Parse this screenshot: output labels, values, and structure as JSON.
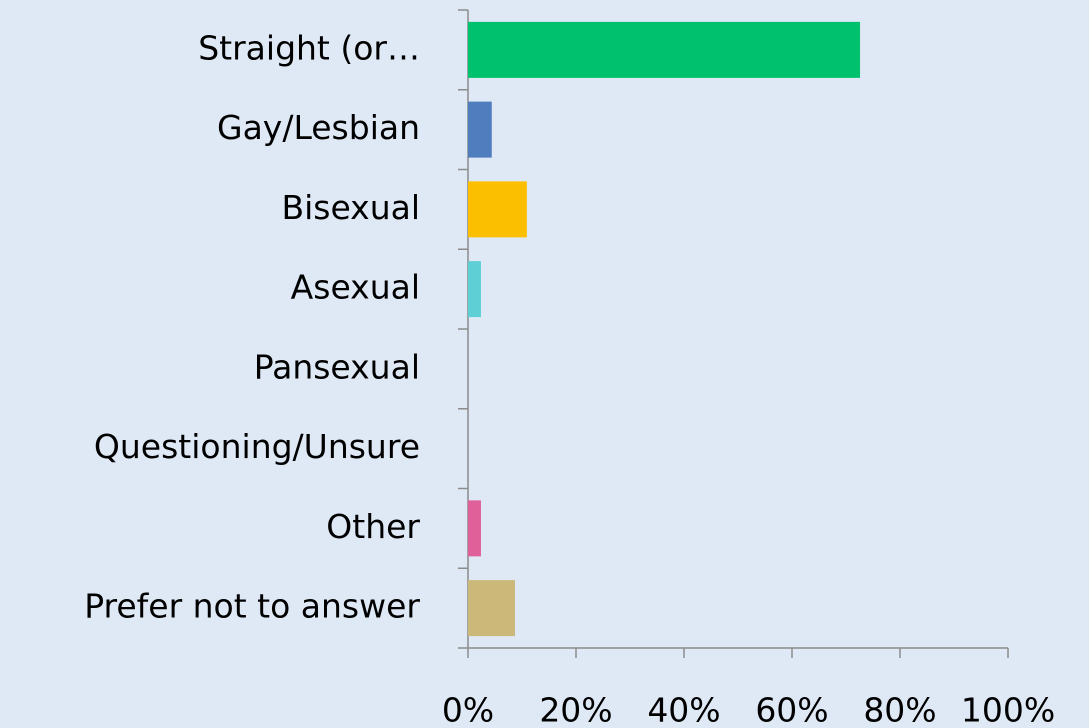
{
  "chart_data": {
    "type": "hbar",
    "categories": [
      "Straight (or…",
      "Gay/Lesbian",
      "Bisexual",
      "Asexual",
      "Pansexual",
      "Questioning/Unsure",
      "Other",
      "Prefer not to answer"
    ],
    "values": [
      72.6,
      4.4,
      10.9,
      2.4,
      0,
      0,
      2.4,
      8.7
    ],
    "colors": [
      "#00c16e",
      "#4f7dbd",
      "#fbbf00",
      "#5ecfd5",
      "#a0a0a0",
      "#a0a0a0",
      "#e0609a",
      "#ccb878"
    ],
    "xlim": [
      0,
      100
    ],
    "xticks": [
      {
        "value": 0,
        "label": "0%"
      },
      {
        "value": 20,
        "label": "20%"
      },
      {
        "value": 40,
        "label": "40%"
      },
      {
        "value": 60,
        "label": "60%"
      },
      {
        "value": 80,
        "label": "80%"
      },
      {
        "value": 100,
        "label": "100%"
      }
    ]
  }
}
